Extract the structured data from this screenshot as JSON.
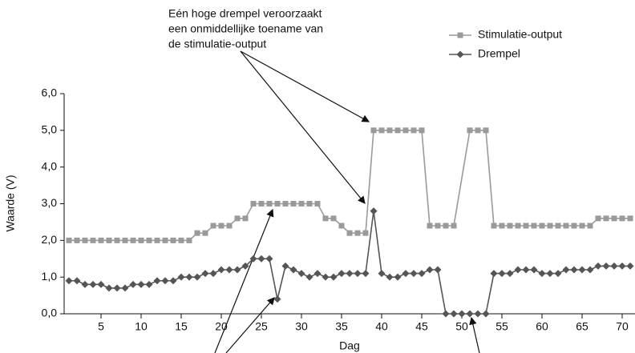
{
  "chart_data": {
    "type": "line",
    "annotations": [
      "Eén hoge drempel veroorzaakt",
      "een onmiddellijke toename van",
      "de stimulatie-output"
    ],
    "x_label": "Dag",
    "y_label": "Waarde (V)",
    "xlim": [
      0.4,
      71.6
    ],
    "xticks": [
      5,
      10,
      15,
      20,
      25,
      30,
      35,
      40,
      45,
      50,
      55,
      60,
      65,
      70
    ],
    "ylim": [
      0,
      6
    ],
    "yticks": [
      {
        "value": 0,
        "label": "0,0"
      },
      {
        "value": 1,
        "label": "1,0"
      },
      {
        "value": 2,
        "label": "2,0"
      },
      {
        "value": 3,
        "label": "3,0"
      },
      {
        "value": 4,
        "label": "4,0"
      },
      {
        "value": 5,
        "label": "5,0"
      },
      {
        "value": 6,
        "label": "6,0"
      }
    ],
    "legend": "top-right",
    "series": [
      {
        "name": "Stimulatie-output",
        "color": "#9a9a9a",
        "marker": "square",
        "x": [
          1,
          2,
          3,
          4,
          5,
          6,
          7,
          8,
          9,
          10,
          11,
          12,
          13,
          14,
          15,
          16,
          17,
          18,
          19,
          20,
          21,
          22,
          23,
          24,
          25,
          26,
          27,
          28,
          29,
          30,
          31,
          32,
          33,
          34,
          35,
          36,
          37,
          38,
          39,
          40,
          41,
          42,
          43,
          44,
          45,
          46,
          47,
          48,
          49,
          51,
          52,
          53,
          54,
          55,
          56,
          57,
          58,
          59,
          60,
          61,
          62,
          63,
          64,
          65,
          66,
          67,
          68,
          69,
          70,
          71
        ],
        "values": [
          2,
          2,
          2,
          2,
          2,
          2,
          2,
          2,
          2,
          2,
          2,
          2,
          2,
          2,
          2,
          2,
          2.2,
          2.2,
          2.4,
          2.4,
          2.4,
          2.6,
          2.6,
          3,
          3,
          3,
          3,
          3,
          3,
          3,
          3,
          3,
          2.6,
          2.6,
          2.4,
          2.2,
          2.2,
          2.2,
          5,
          5,
          5,
          5,
          5,
          5,
          5,
          2.4,
          2.4,
          2.4,
          2.4,
          5,
          5,
          5,
          2.4,
          2.4,
          2.4,
          2.4,
          2.4,
          2.4,
          2.4,
          2.4,
          2.4,
          2.4,
          2.4,
          2.4,
          2.4,
          2.6,
          2.6,
          2.6,
          2.6,
          2.6
        ]
      },
      {
        "name": "Drempel",
        "color": "#555555",
        "marker": "diamond",
        "x": [
          1,
          2,
          3,
          4,
          5,
          6,
          7,
          8,
          9,
          10,
          11,
          12,
          13,
          14,
          15,
          16,
          17,
          18,
          19,
          20,
          21,
          22,
          23,
          24,
          25,
          26,
          27,
          28,
          29,
          30,
          31,
          32,
          33,
          34,
          35,
          36,
          37,
          38,
          39,
          40,
          41,
          42,
          43,
          44,
          45,
          46,
          47,
          48,
          49,
          50,
          51,
          52,
          53,
          54,
          55,
          56,
          57,
          58,
          59,
          60,
          61,
          62,
          63,
          64,
          65,
          66,
          67,
          68,
          69,
          70,
          71
        ],
        "values": [
          0.9,
          0.9,
          0.8,
          0.8,
          0.8,
          0.7,
          0.7,
          0.7,
          0.8,
          0.8,
          0.8,
          0.9,
          0.9,
          0.9,
          1,
          1,
          1,
          1.1,
          1.1,
          1.2,
          1.2,
          1.2,
          1.3,
          1.5,
          1.5,
          1.5,
          0.4,
          1.3,
          1.2,
          1.1,
          1,
          1.1,
          1,
          1,
          1.1,
          1.1,
          1.1,
          1.1,
          2.8,
          1.1,
          1,
          1,
          1.1,
          1.1,
          1.1,
          1.2,
          1.2,
          0,
          0,
          0,
          0,
          0,
          0,
          1.1,
          1.1,
          1.1,
          1.2,
          1.2,
          1.2,
          1.1,
          1.1,
          1.1,
          1.2,
          1.2,
          1.2,
          1.2,
          1.3,
          1.3,
          1.3,
          1.3,
          1.3
        ]
      }
    ]
  }
}
